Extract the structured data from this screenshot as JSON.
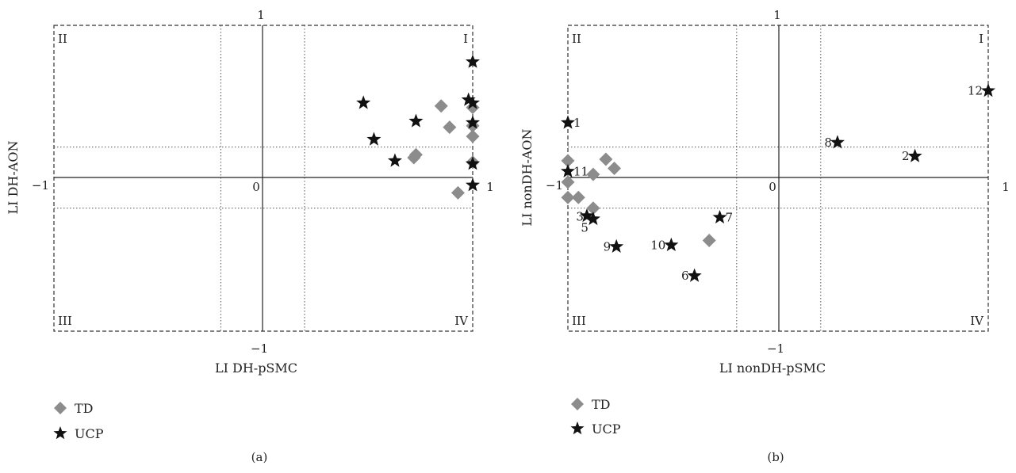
{
  "chart_data": [
    {
      "type": "scatter",
      "panel_label": "(a)",
      "xlabel": "LI DH-pSMC",
      "ylabel": "LI DH-AON",
      "xlim": [
        -1,
        1
      ],
      "ylim": [
        -1,
        1
      ],
      "ticks": {
        "left": "−1",
        "right": "1",
        "top": "1",
        "bottom": "−1",
        "origin": "0"
      },
      "quadrants": {
        "I": "I",
        "II": "II",
        "III": "III",
        "IV": "IV"
      },
      "dotted_reference_lines": {
        "x": [
          -0.2,
          0.2
        ],
        "y": [
          0.2,
          -0.2
        ]
      },
      "legend": [
        {
          "name": "TD",
          "marker": "diamond"
        },
        {
          "name": "UCP",
          "marker": "star"
        }
      ],
      "series": [
        {
          "name": "TD",
          "marker": "diamond",
          "points": [
            {
              "x": 0.85,
              "y": 0.47
            },
            {
              "x": 0.89,
              "y": 0.33
            },
            {
              "x": 0.73,
              "y": 0.15
            },
            {
              "x": 0.72,
              "y": 0.13
            },
            {
              "x": 0.93,
              "y": -0.1
            },
            {
              "x": 1.0,
              "y": 0.46
            },
            {
              "x": 1.0,
              "y": 0.34
            },
            {
              "x": 1.0,
              "y": 0.27
            },
            {
              "x": 1.0,
              "y": 0.1
            }
          ]
        },
        {
          "name": "UCP",
          "marker": "star",
          "points": [
            {
              "x": 1.0,
              "y": 0.76
            },
            {
              "x": 0.48,
              "y": 0.49
            },
            {
              "x": 0.98,
              "y": 0.51
            },
            {
              "x": 1.0,
              "y": 0.49
            },
            {
              "x": 0.73,
              "y": 0.37
            },
            {
              "x": 1.0,
              "y": 0.36
            },
            {
              "x": 0.53,
              "y": 0.25
            },
            {
              "x": 0.63,
              "y": 0.11
            },
            {
              "x": 1.0,
              "y": 0.09
            },
            {
              "x": 1.0,
              "y": -0.05
            }
          ]
        }
      ]
    },
    {
      "type": "scatter",
      "panel_label": "(b)",
      "xlabel": "LI nonDH-pSMC",
      "ylabel": "LI nonDH-AON",
      "xlim": [
        -1,
        1
      ],
      "ylim": [
        -1,
        1
      ],
      "ticks": {
        "left": "−1",
        "right": "1",
        "top": "1",
        "bottom": "−1",
        "origin": "0"
      },
      "quadrants": {
        "I": "I",
        "II": "II",
        "III": "III",
        "IV": "IV"
      },
      "dotted_reference_lines": {
        "x": [
          -0.2,
          0.2
        ],
        "y": [
          0.2,
          -0.2
        ]
      },
      "legend": [
        {
          "name": "TD",
          "marker": "diamond"
        },
        {
          "name": "UCP",
          "marker": "star"
        }
      ],
      "series": [
        {
          "name": "TD",
          "marker": "diamond",
          "points": [
            {
              "x": -1.0,
              "y": 0.11
            },
            {
              "x": -1.0,
              "y": -0.03
            },
            {
              "x": -1.0,
              "y": -0.13
            },
            {
              "x": -0.95,
              "y": -0.13
            },
            {
              "x": -0.88,
              "y": 0.02
            },
            {
              "x": -0.82,
              "y": 0.12
            },
            {
              "x": -0.78,
              "y": 0.06
            },
            {
              "x": -0.88,
              "y": -0.2
            },
            {
              "x": -0.33,
              "y": -0.41
            }
          ]
        },
        {
          "name": "UCP",
          "marker": "star",
          "points": [
            {
              "x": -1.0,
              "y": 0.36,
              "label": "1"
            },
            {
              "x": 0.65,
              "y": 0.14,
              "label": "2"
            },
            {
              "x": -0.91,
              "y": -0.25,
              "label": "3"
            },
            {
              "x": -0.88,
              "y": -0.27,
              "label": "5"
            },
            {
              "x": -0.28,
              "y": -0.26,
              "label": "7"
            },
            {
              "x": -0.77,
              "y": -0.45,
              "label": "9"
            },
            {
              "x": -0.51,
              "y": -0.44,
              "label": "10"
            },
            {
              "x": -0.4,
              "y": -0.64,
              "label": "6"
            },
            {
              "x": 0.28,
              "y": 0.23,
              "label": "8"
            },
            {
              "x": -1.0,
              "y": 0.04,
              "label": "11"
            },
            {
              "x": 1.0,
              "y": 0.57,
              "label": "12"
            }
          ]
        }
      ]
    }
  ],
  "colors": {
    "td": "#8c8c8c",
    "ucp": "#111111",
    "axes": "#222222",
    "box": "#333333",
    "dotted": "#555555"
  }
}
